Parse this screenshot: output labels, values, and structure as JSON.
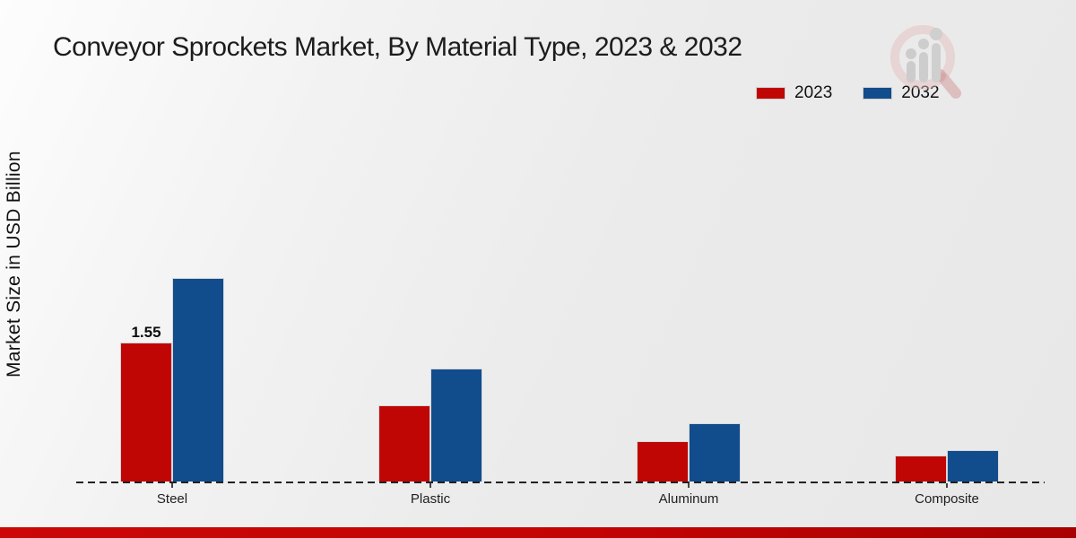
{
  "header": {
    "title": "Conveyor Sprockets Market, By Material Type, 2023 & 2032"
  },
  "y_axis": {
    "label": "Market Size in USD Billion"
  },
  "colors": {
    "series_2023": "#c00505",
    "series_2032": "#114c8c",
    "bottom_strip": "#c40303",
    "background": "#ebebeb",
    "text": "#1a1a1a"
  },
  "watermark": {
    "icon": "magnifier-bar-chart-logo"
  },
  "chart_data": {
    "type": "bar",
    "title": "Conveyor Sprockets Market, By Material Type, 2023 & 2032",
    "xlabel": "",
    "ylabel": "Market Size in USD Billion",
    "categories": [
      "Steel",
      "Plastic",
      "Aluminum",
      "Composite"
    ],
    "series": [
      {
        "name": "2023",
        "color": "#c00505",
        "values": [
          1.55,
          0.85,
          0.45,
          0.29
        ],
        "data_labels": [
          "1.55",
          null,
          null,
          null
        ]
      },
      {
        "name": "2032",
        "color": "#114c8c",
        "values": [
          2.27,
          1.26,
          0.65,
          0.35
        ],
        "data_labels": [
          null,
          null,
          null,
          null
        ]
      }
    ],
    "ylim": [
      0,
      2.5
    ],
    "grid": false,
    "y_ticks_visible": false,
    "legend_position": "top-right",
    "baseline_style": "dashed"
  }
}
